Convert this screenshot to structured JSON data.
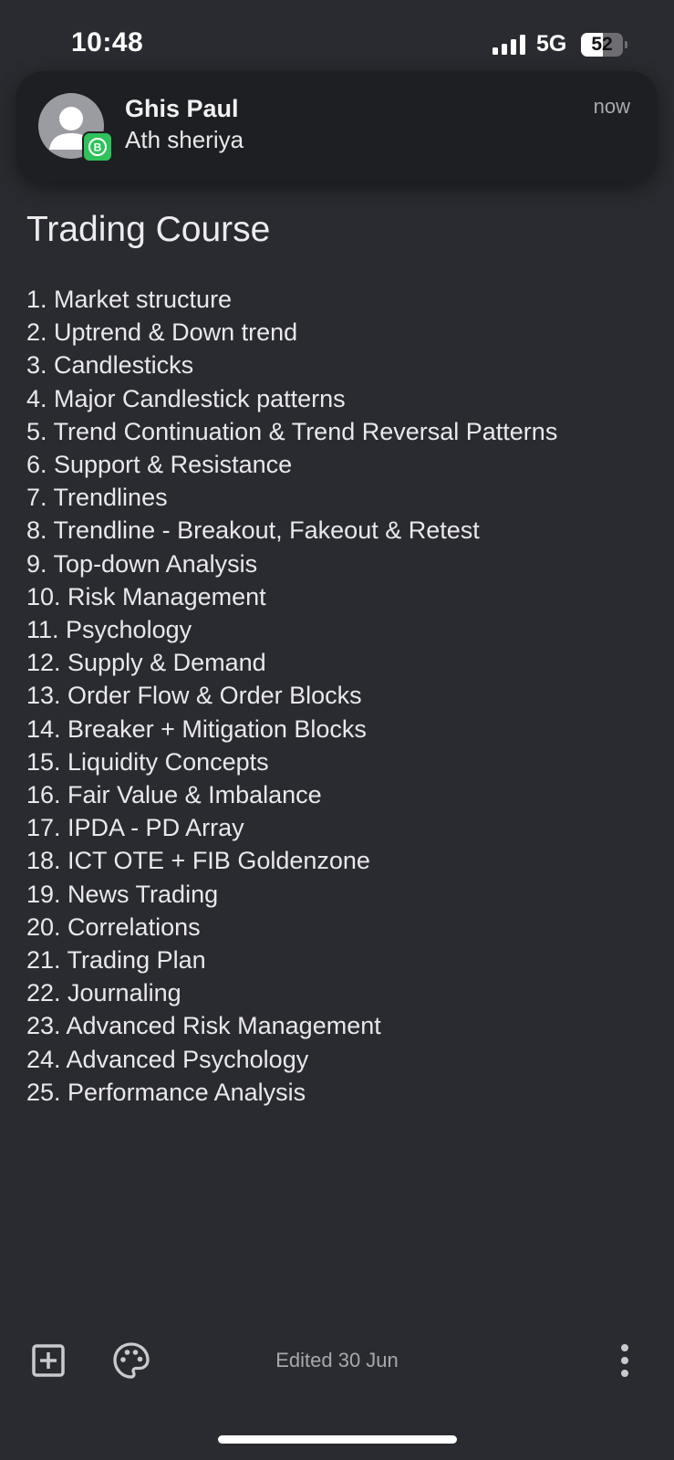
{
  "status_bar": {
    "time": "10:48",
    "network": "5G",
    "battery_level": "52",
    "battery_fraction": 0.52
  },
  "notification": {
    "sender": "Ghis Paul",
    "message": "Ath sheriya",
    "time": "now",
    "avatar_icon": "person-icon",
    "app_badge_icon": "whatsapp-business-icon",
    "app_badge_color": "#2fc25b"
  },
  "note": {
    "title": "Trading Course",
    "items": [
      "1. Market structure",
      "2. Uptrend & Down trend",
      "3. Candlesticks",
      "4. Major Candlestick patterns",
      "5. Trend Continuation & Trend Reversal Patterns",
      "6. Support & Resistance",
      "7. Trendlines",
      "8. Trendline - Breakout, Fakeout & Retest",
      "9. Top-down Analysis",
      "10. Risk Management",
      "11. Psychology",
      "12. Supply & Demand",
      "13. Order Flow & Order Blocks",
      "14. Breaker + Mitigation Blocks",
      "15. Liquidity Concepts",
      "16. Fair Value & Imbalance",
      "17. IPDA - PD Array",
      "18. ICT OTE + FIB Goldenzone",
      "19. News Trading",
      "20. Correlations",
      "21. Trading Plan",
      "22. Journaling",
      "23. Advanced Risk Management",
      "24. Advanced Psychology",
      "25. Performance Analysis"
    ]
  },
  "toolbar": {
    "add_icon": "add-box-icon",
    "palette_icon": "palette-icon",
    "edited_label": "Edited 30 Jun",
    "more_icon": "more-vertical-icon"
  },
  "colors": {
    "background": "#2a2b30",
    "banner": "#1e1f22",
    "text": "#e9e9eb",
    "muted_text": "#a7a8ac"
  }
}
